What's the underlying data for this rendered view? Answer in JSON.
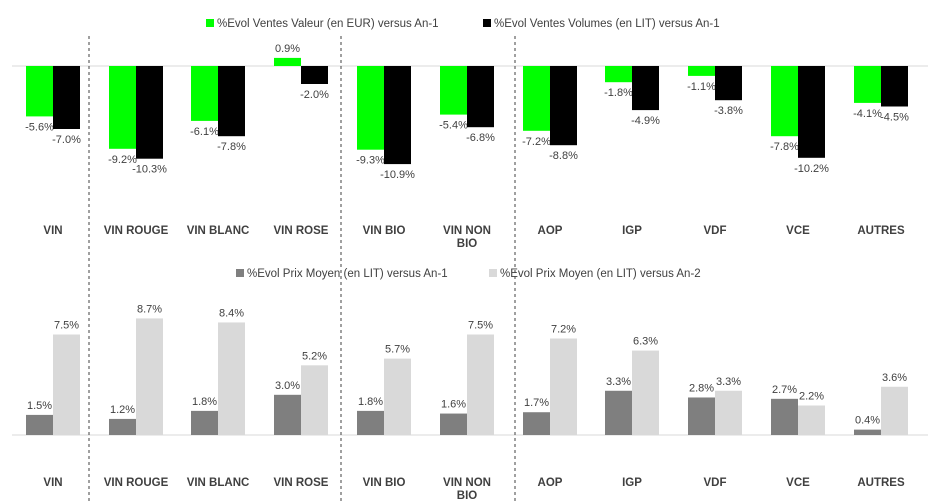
{
  "chart_data": [
    {
      "type": "bar",
      "categories": [
        "VIN",
        "VIN ROUGE",
        "VIN BLANC",
        "VIN ROSE",
        "VIN BIO",
        "VIN NON BIO",
        "AOP",
        "IGP",
        "VDF",
        "VCE",
        "AUTRES"
      ],
      "series": [
        {
          "name": "%Evol Ventes Valeur (en EUR) versus An-1",
          "color": "#00ff00",
          "values": [
            -5.6,
            -9.2,
            -6.1,
            0.9,
            -9.3,
            -5.4,
            -7.2,
            -1.8,
            -1.1,
            -7.8,
            -4.1
          ],
          "labels": [
            "-5.6%",
            "-9.2%",
            "-6.1%",
            "0.9%",
            "-9.3%",
            "-5.4%",
            "-7.2%",
            "-1.8%",
            "-1.1%",
            "-7.8%",
            "-4.1%"
          ]
        },
        {
          "name": "%Evol Ventes Volumes (en LIT) versus An-1",
          "color": "#000000",
          "values": [
            -7.0,
            -10.3,
            -7.8,
            -2.0,
            -10.9,
            -6.8,
            -8.8,
            -4.9,
            -3.8,
            -10.2,
            -4.5
          ],
          "labels": [
            "-7.0%",
            "-10.3%",
            "-7.8%",
            "-2.0%",
            "-10.9%",
            "-6.8%",
            "-8.8%",
            "-4.9%",
            "-3.8%",
            "-10.2%",
            "-4.5%"
          ]
        }
      ],
      "legend_position": "top"
    },
    {
      "type": "bar",
      "categories": [
        "VIN",
        "VIN ROUGE",
        "VIN BLANC",
        "VIN ROSE",
        "VIN BIO",
        "VIN NON BIO",
        "AOP",
        "IGP",
        "VDF",
        "VCE",
        "AUTRES"
      ],
      "series": [
        {
          "name": "%Evol Prix Moyen (en LIT) versus An-1",
          "color": "#7f7f7f",
          "values": [
            1.5,
            1.2,
            1.8,
            3.0,
            1.8,
            1.6,
            1.7,
            3.3,
            2.8,
            2.7,
            0.4
          ],
          "labels": [
            "1.5%",
            "1.2%",
            "1.8%",
            "3.0%",
            "1.8%",
            "1.6%",
            "1.7%",
            "3.3%",
            "2.8%",
            "2.7%",
            "0.4%"
          ]
        },
        {
          "name": "%Evol Prix Moyen (en LIT) versus An-2",
          "color": "#d9d9d9",
          "values": [
            7.5,
            8.7,
            8.4,
            5.2,
            5.7,
            7.5,
            7.2,
            6.3,
            3.3,
            2.2,
            3.6
          ],
          "labels": [
            "7.5%",
            "8.7%",
            "8.4%",
            "5.2%",
            "5.7%",
            "7.5%",
            "7.2%",
            "6.3%",
            "3.3%",
            "2.2%",
            "3.6%"
          ]
        }
      ],
      "legend_position": "top"
    }
  ]
}
